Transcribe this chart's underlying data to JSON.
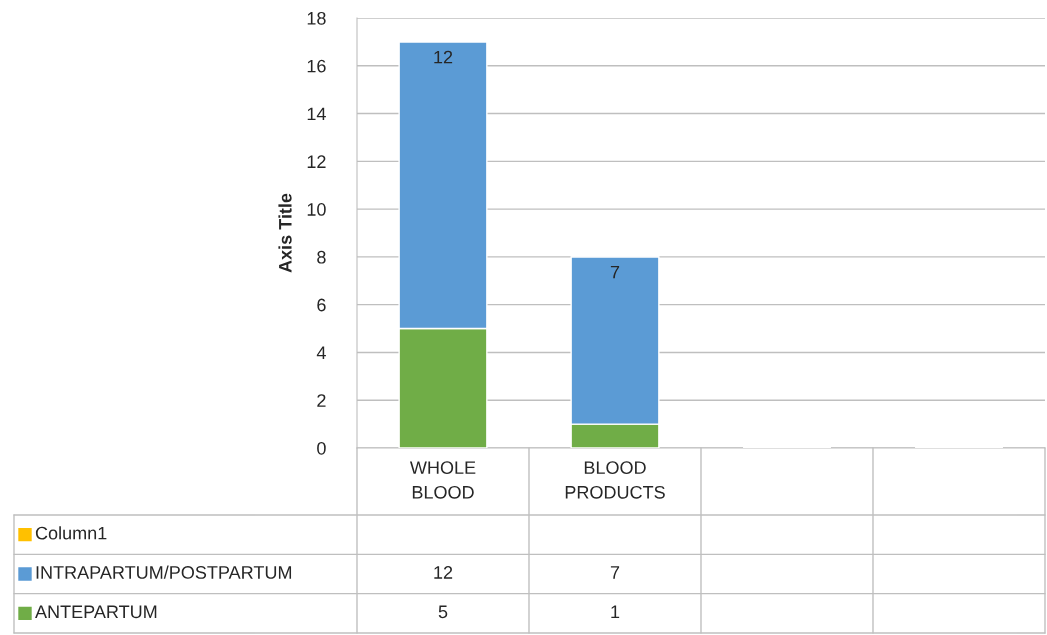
{
  "chart_data": {
    "type": "bar",
    "stacked": true,
    "ylabel": "Axis Title",
    "categories": [
      "WHOLE\nBLOOD",
      "BLOOD\nPRODUCTS",
      null,
      null
    ],
    "series": [
      {
        "name": "ANTEPARTUM",
        "color": "#70ad47",
        "values": [
          5,
          1,
          null,
          null
        ]
      },
      {
        "name": "INTRAPARTUM/POSTPARTUM",
        "color": "#5b9bd5",
        "values": [
          12,
          7,
          null,
          null
        ]
      },
      {
        "name": "Column1",
        "color": "#ffc000",
        "values": [
          null,
          null,
          null,
          null
        ]
      }
    ],
    "ylim": [
      0,
      18
    ],
    "yticks": [
      0,
      2,
      4,
      6,
      8,
      10,
      12,
      14,
      16,
      18
    ],
    "grid": "y",
    "data_labels": true,
    "legend": "bottom left",
    "annotations": [
      {
        "text": "12",
        "x": "WHOLE\nBLOOD",
        "y": 17
      },
      {
        "text": "7",
        "x": "BLOOD\nPRODUCTS",
        "y": 8
      }
    ]
  }
}
